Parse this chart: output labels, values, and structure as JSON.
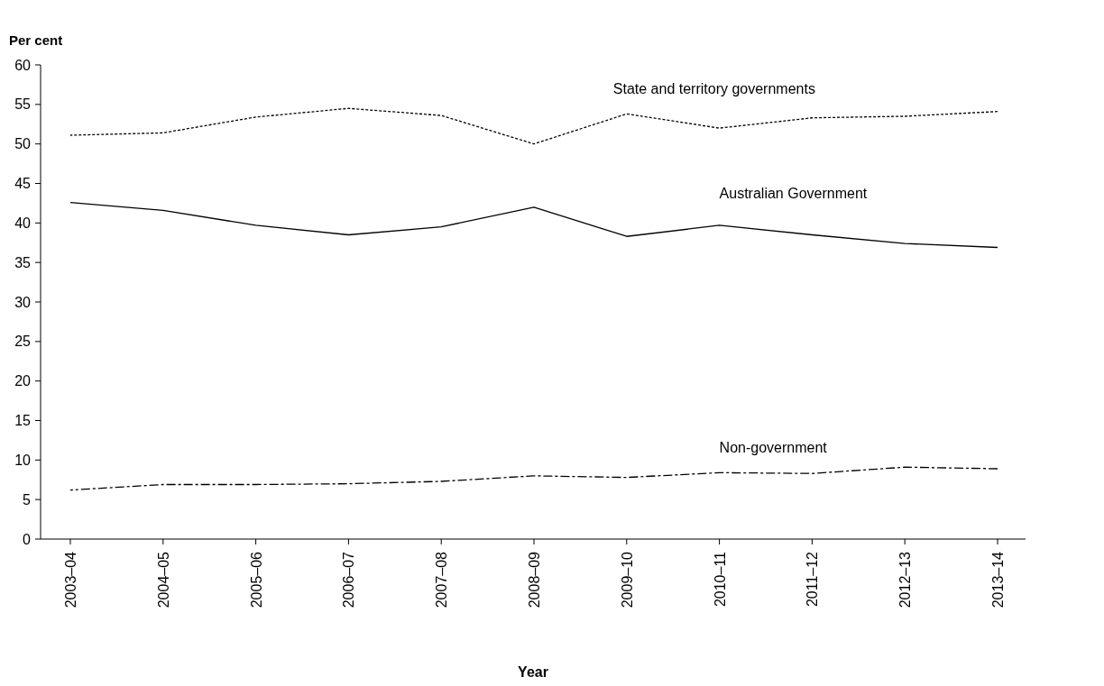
{
  "chart_data": {
    "type": "line",
    "xlabel": "Year",
    "ylabel": "Per cent",
    "categories": [
      "2003–04",
      "2004–05",
      "2005–06",
      "2006–07",
      "2007–08",
      "2008–09",
      "2009–10",
      "2010–11",
      "2011–12",
      "2012–13",
      "2013–14"
    ],
    "ylim": [
      0,
      60
    ],
    "yticks": [
      0,
      5,
      10,
      15,
      20,
      25,
      30,
      35,
      40,
      45,
      50,
      55,
      60
    ],
    "grid": false,
    "marker": "none",
    "series": [
      {
        "name": "State and territory governments",
        "color": "#000000",
        "line_style": "dotted",
        "values": [
          51.1,
          51.4,
          53.4,
          54.5,
          53.6,
          50.0,
          53.8,
          52.0,
          53.3,
          53.5,
          54.1
        ]
      },
      {
        "name": "Australian Government",
        "color": "#000000",
        "line_style": "solid",
        "values": [
          42.6,
          41.6,
          39.7,
          38.5,
          39.5,
          42.0,
          38.3,
          39.7,
          38.5,
          37.4,
          36.9
        ]
      },
      {
        "name": "Non-government",
        "color": "#000000",
        "line_style": "dashed",
        "values": [
          6.2,
          6.9,
          6.9,
          7.0,
          7.3,
          8.0,
          7.8,
          8.4,
          8.3,
          9.1,
          8.9
        ]
      }
    ]
  }
}
